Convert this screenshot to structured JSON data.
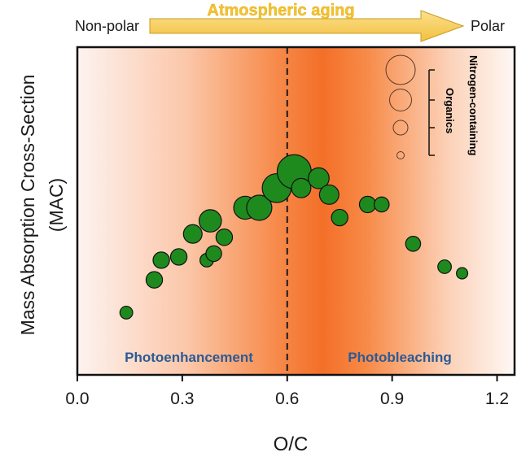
{
  "chart_data": {
    "type": "scatter",
    "title": "",
    "xlabel": "O/C",
    "ylabel": "Mass Absorption Cross-Section (MAC)",
    "xlim": [
      0.0,
      1.25
    ],
    "ylim": [
      0,
      100
    ],
    "xticks": [
      "0.0",
      "0.3",
      "0.6",
      "0.9",
      "1.2"
    ],
    "yticks_shown": false,
    "threshold_x": 0.6,
    "arrow": {
      "left_label": "Non-polar",
      "center_label": "Atmospheric aging",
      "right_label": "Polar"
    },
    "regions": [
      {
        "label": "Photoenhancement",
        "x_range": [
          0.0,
          0.6
        ]
      },
      {
        "label": "Photobleaching",
        "x_range": [
          0.6,
          1.25
        ]
      }
    ],
    "legend": {
      "label": "Nitrogen-containing Organics",
      "sizes": [
        4,
        3,
        2,
        1
      ]
    },
    "series": [
      {
        "marker_color": "#1e8a1e",
        "points": [
          {
            "x": 0.14,
            "y": 19,
            "size": 1.3
          },
          {
            "x": 0.22,
            "y": 29,
            "size": 1.8
          },
          {
            "x": 0.24,
            "y": 35,
            "size": 1.8
          },
          {
            "x": 0.29,
            "y": 36,
            "size": 1.8
          },
          {
            "x": 0.33,
            "y": 43,
            "size": 2.1
          },
          {
            "x": 0.37,
            "y": 35,
            "size": 1.4
          },
          {
            "x": 0.38,
            "y": 47,
            "size": 2.6
          },
          {
            "x": 0.39,
            "y": 37,
            "size": 1.7
          },
          {
            "x": 0.42,
            "y": 42,
            "size": 1.8
          },
          {
            "x": 0.48,
            "y": 51,
            "size": 2.7
          },
          {
            "x": 0.52,
            "y": 51,
            "size": 3.0
          },
          {
            "x": 0.57,
            "y": 57,
            "size": 3.5
          },
          {
            "x": 0.62,
            "y": 62,
            "size": 4.2
          },
          {
            "x": 0.64,
            "y": 57,
            "size": 2.2
          },
          {
            "x": 0.69,
            "y": 60,
            "size": 2.4
          },
          {
            "x": 0.72,
            "y": 55,
            "size": 2.2
          },
          {
            "x": 0.75,
            "y": 48,
            "size": 1.8
          },
          {
            "x": 0.83,
            "y": 52,
            "size": 1.8
          },
          {
            "x": 0.87,
            "y": 52,
            "size": 1.6
          },
          {
            "x": 0.96,
            "y": 40,
            "size": 1.6
          },
          {
            "x": 1.05,
            "y": 33,
            "size": 1.4
          },
          {
            "x": 1.1,
            "y": 31,
            "size": 1.1
          }
        ]
      }
    ]
  }
}
